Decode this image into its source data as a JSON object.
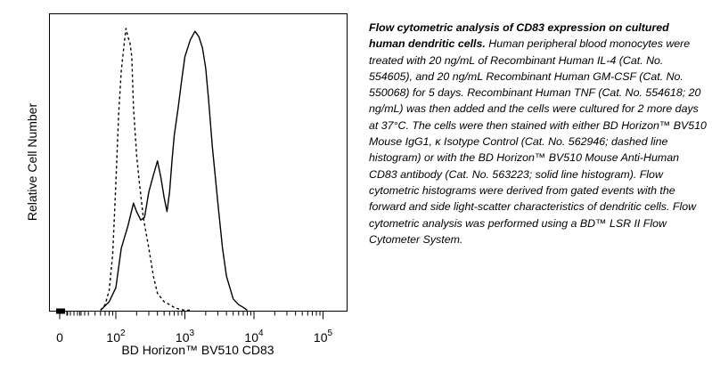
{
  "chart_data": {
    "type": "line",
    "x_scale": "biexponential",
    "xlabel": "BD Horizon™ BV510 CD83",
    "ylabel": "Relative Cell Number",
    "x_ticks": [
      {
        "value": 0,
        "base": "0",
        "exp": ""
      },
      {
        "value": 100,
        "base": "10",
        "exp": "2"
      },
      {
        "value": 1000,
        "base": "10",
        "exp": "3"
      },
      {
        "value": 10000,
        "base": "10",
        "exp": "4"
      },
      {
        "value": 100000,
        "base": "10",
        "exp": "5"
      }
    ],
    "series": [
      {
        "label": "Isotype control",
        "style": "dashed",
        "x": [
          60,
          70,
          80,
          90,
          100,
          110,
          120,
          130,
          140,
          150,
          160,
          170,
          180,
          200,
          220,
          250,
          300,
          350,
          400,
          500,
          600,
          700,
          800,
          1000,
          1200
        ],
        "y": [
          0,
          0.02,
          0.07,
          0.2,
          0.45,
          0.7,
          0.85,
          0.93,
          1.0,
          0.97,
          0.95,
          0.9,
          0.72,
          0.55,
          0.45,
          0.33,
          0.22,
          0.12,
          0.06,
          0.03,
          0.02,
          0.01,
          0.005,
          0,
          0
        ]
      },
      {
        "label": "CD83",
        "style": "solid",
        "x": [
          60,
          80,
          100,
          120,
          150,
          180,
          200,
          230,
          260,
          300,
          350,
          400,
          450,
          500,
          550,
          600,
          650,
          700,
          800,
          900,
          1000,
          1200,
          1400,
          1600,
          1800,
          2000,
          2200,
          2500,
          3000,
          3500,
          4000,
          5000,
          6000,
          7000,
          8000
        ],
        "y": [
          0,
          0.03,
          0.08,
          0.22,
          0.3,
          0.38,
          0.35,
          0.32,
          0.33,
          0.42,
          0.48,
          0.53,
          0.47,
          0.4,
          0.35,
          0.42,
          0.53,
          0.62,
          0.72,
          0.82,
          0.9,
          0.96,
          0.99,
          0.97,
          0.93,
          0.86,
          0.75,
          0.58,
          0.38,
          0.22,
          0.12,
          0.04,
          0.02,
          0.01,
          0
        ]
      }
    ]
  },
  "caption": {
    "title": "Flow cytometric analysis of CD83 expression on cultured human dendritic cells.",
    "body": "Human peripheral blood monocytes were treated with 20 ng/mL of Recombinant Human IL-4 (Cat. No. 554605), and 20 ng/mL Recombinant Human GM-CSF (Cat. No. 550068) for 5 days. Recombinant Human TNF (Cat. No. 554618; 20 ng/mL) was then added and the cells were cultured for 2 more days at 37°C. The cells were then stained with either BD Horizon™ BV510 Mouse IgG1, κ Isotype Control (Cat. No. 562946; dashed line histogram) or with the BD Horizon™ BV510 Mouse Anti-Human CD83 antibody (Cat. No. 563223; solid line histogram). Flow cytometric histograms were derived from gated events with the forward and side light-scatter characteristics of dendritic cells. Flow cytometric analysis was performed using a BD™ LSR II Flow Cytometer System."
  }
}
